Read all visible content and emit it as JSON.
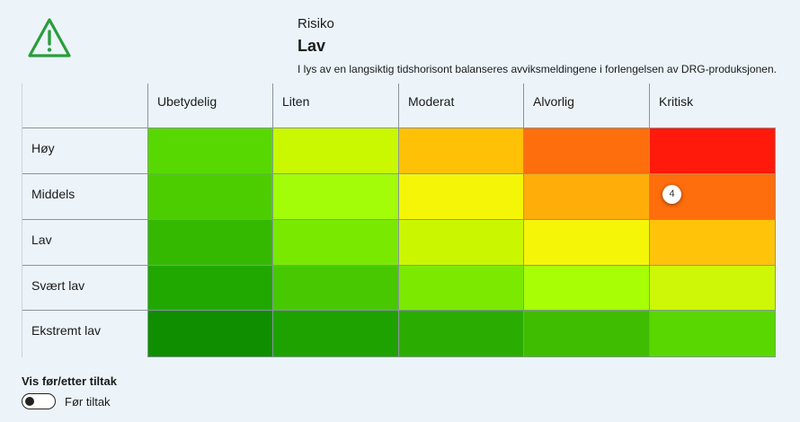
{
  "risk": {
    "label": "Risiko",
    "value": "Lav",
    "description": "I lys av en langsiktig tidshorisont balanseres avviksmeldingene i forlengelsen av DRG-produksjonen.",
    "icon": "warning-triangle-icon",
    "icon_color": "#2a9d3c"
  },
  "matrix": {
    "columns": [
      "Ubetydelig",
      "Liten",
      "Moderat",
      "Alvorlig",
      "Kritisk"
    ],
    "rows": [
      {
        "label": "Høy",
        "colors": [
          "#57d800",
          "#c9f800",
          "#ffc105",
          "#ff6e0c",
          "#ff1a0c"
        ],
        "badges": [
          null,
          null,
          null,
          null,
          null
        ]
      },
      {
        "label": "Middels",
        "colors": [
          "#4ccd00",
          "#a3fd08",
          "#f5f508",
          "#ffad09",
          "#ff6e0c"
        ],
        "badges": [
          null,
          null,
          null,
          null,
          "4"
        ]
      },
      {
        "label": "Lav",
        "colors": [
          "#35b800",
          "#7ae900",
          "#caf700",
          "#f5f508",
          "#ffc40a"
        ],
        "badges": [
          null,
          null,
          null,
          null,
          null
        ]
      },
      {
        "label": "Svært lav",
        "colors": [
          "#20a700",
          "#48c800",
          "#7be900",
          "#a7fe05",
          "#cdf707"
        ],
        "badges": [
          null,
          null,
          null,
          null,
          null
        ]
      },
      {
        "label": "Ekstremt lav",
        "colors": [
          "#0f8e00",
          "#1ea200",
          "#2aad00",
          "#3fbd00",
          "#58d800"
        ],
        "badges": [
          null,
          null,
          null,
          null,
          null
        ]
      }
    ]
  },
  "toggle": {
    "title": "Vis før/etter tiltak",
    "label": "Før tiltak",
    "checked": false
  }
}
